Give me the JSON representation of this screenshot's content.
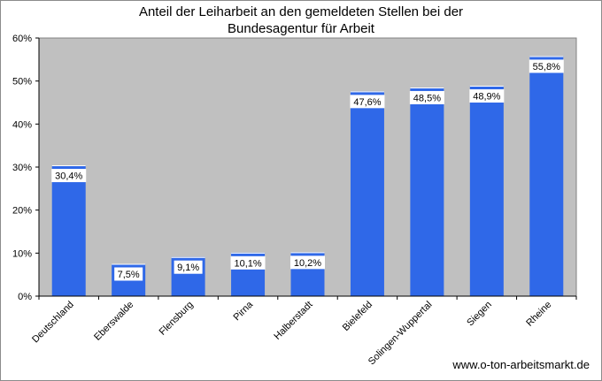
{
  "chart_data": {
    "type": "bar",
    "title_line1": "Anteil der Leiharbeit an den gemeldeten Stellen bei der",
    "title_line2": "Bundesagentur für Arbeit",
    "xlabel": "",
    "ylabel": "",
    "ylim": [
      0,
      60
    ],
    "yticks": [
      "0%",
      "10%",
      "20%",
      "30%",
      "40%",
      "50%",
      "60%"
    ],
    "grid": false,
    "categories": [
      "Deutschland",
      "Eberswalde",
      "Flensburg",
      "Pirna",
      "Halberstadt",
      "Bielefeld",
      "Solingen-Wuppertal",
      "Siegen",
      "Rheine"
    ],
    "values": [
      30.4,
      7.5,
      9.1,
      10.1,
      10.2,
      47.6,
      48.5,
      48.9,
      55.8
    ],
    "labels": [
      "30,4%",
      "7,5%",
      "9,1%",
      "10,1%",
      "10,2%",
      "47,6%",
      "48,5%",
      "48,9%",
      "55,8%"
    ],
    "bar_color": "#2f68e8",
    "plot_bg": "#c0c0c0"
  },
  "source": "www.o-ton-arbeitsmarkt.de"
}
